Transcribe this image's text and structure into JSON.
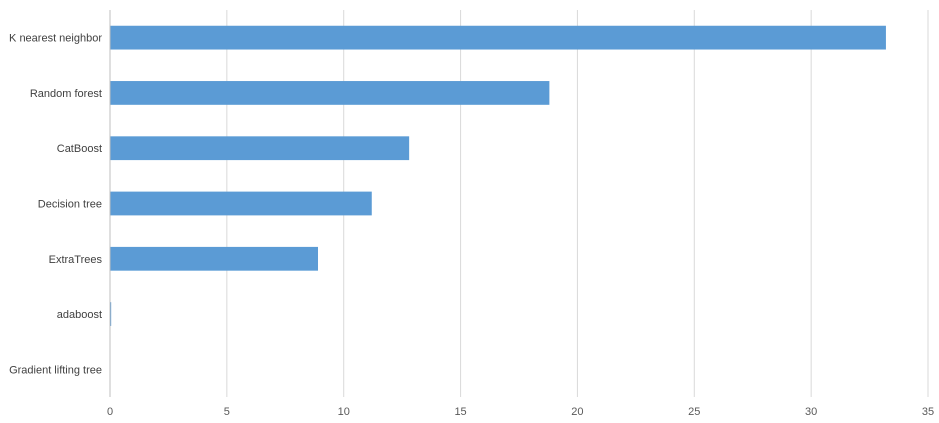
{
  "chart_data": {
    "type": "bar",
    "orientation": "horizontal",
    "categories": [
      "K nearest neighbor",
      "Random forest",
      "CatBoost",
      "Decision tree",
      "ExtraTrees",
      "adaboost",
      "Gradient lifting tree"
    ],
    "values": [
      33.2,
      18.8,
      12.8,
      11.2,
      8.9,
      0.05,
      0
    ],
    "xlim": [
      0,
      35
    ],
    "xticks": [
      "0",
      "5",
      "10",
      "15",
      "20",
      "25",
      "30",
      "35"
    ],
    "grid": true,
    "legend": "none",
    "title": "",
    "xlabel": "",
    "ylabel": "",
    "bar_color": "#5b9bd5"
  }
}
